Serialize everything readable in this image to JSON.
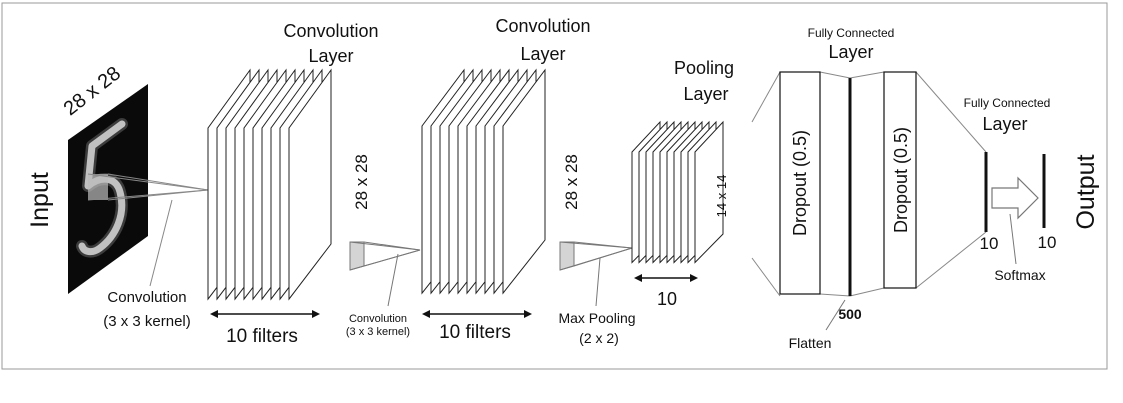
{
  "input": {
    "size_label": "28 x 28",
    "label": "Input"
  },
  "conv1": {
    "title_line1": "Convolution",
    "title_line2": "Layer",
    "feature_size": "28 x 28",
    "filters_label": "10 filters",
    "kernel_label_line1": "Convolution",
    "kernel_label_line2": "(3 x 3 kernel)"
  },
  "conv2": {
    "title_line1": "Convolution",
    "title_line2": "Layer",
    "feature_size": "28 x 28",
    "filters_label": "10 filters",
    "kernel_label_line1": "Convolution",
    "kernel_label_line2": "(3 x 3 kernel)"
  },
  "pooling": {
    "title_line1": "Pooling",
    "title_line2": "Layer",
    "feature_size": "14 x 14",
    "count_label": "10",
    "op_label_line1": "Max Pooling",
    "op_label_line2": "(2 x 2)"
  },
  "fc1": {
    "title_line1": "Fully Connected",
    "title_line2": "Layer",
    "dropout_left": "Dropout (0.5)",
    "dropout_right": "Dropout (0.5)",
    "units_label": "500",
    "flatten_label": "Flatten"
  },
  "fc2": {
    "title_line1": "Fully Connected",
    "title_line2": "Layer",
    "units_label": "10",
    "softmax_label": "Softmax"
  },
  "output": {
    "units_label": "10",
    "label": "Output"
  }
}
